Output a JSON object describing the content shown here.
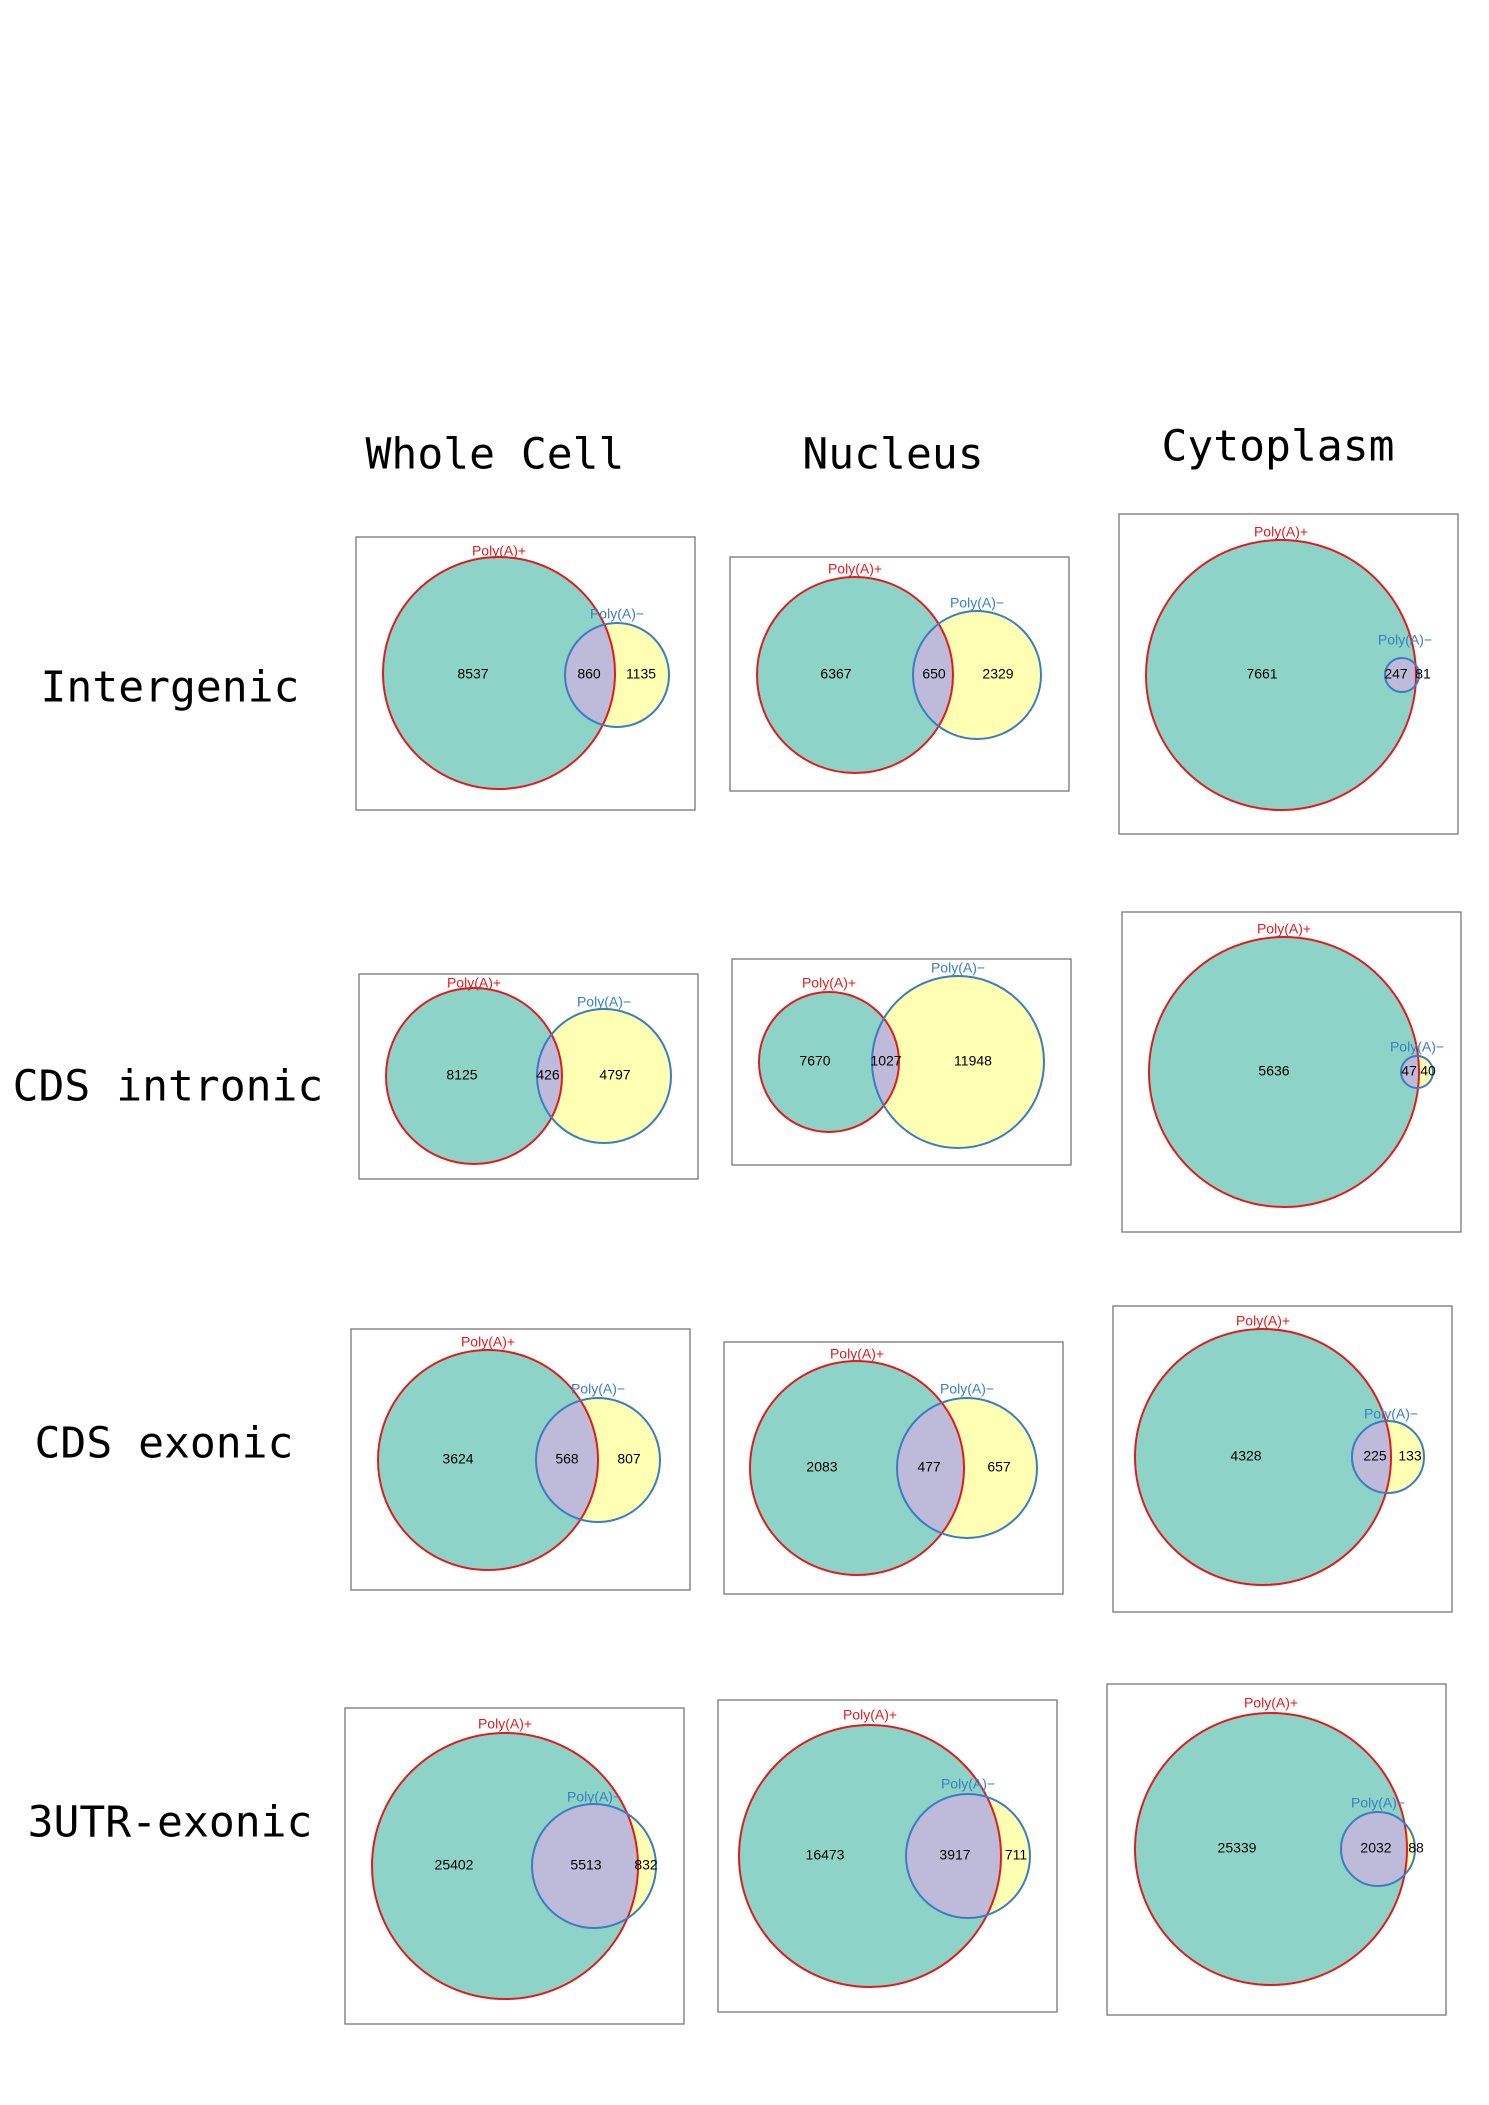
{
  "columns": [
    "Whole Cell",
    "Nucleus",
    "Cytoplasm"
  ],
  "rows": [
    "Intergenic",
    "CDS intronic",
    "CDS exonic",
    "3UTR-exonic"
  ],
  "set_labels": {
    "a": "Poly(A)+",
    "b": "Poly(A)−"
  },
  "colors": {
    "a_fill": "#8dd3c7",
    "b_fill": "#ffffb3",
    "overlap_fill": "#bebada",
    "a_stroke": "#e31a1c",
    "b_stroke": "#3a7dc2",
    "label_a": "#e31a1c",
    "label_b": "#3a7dc2",
    "frame": "#777777"
  },
  "chart_data": [
    {
      "row": "Intergenic",
      "column": "Whole Cell",
      "a_only": "8537",
      "both": "860",
      "b_only": "1135"
    },
    {
      "row": "Intergenic",
      "column": "Nucleus",
      "a_only": "6367",
      "both": "650",
      "b_only": "2329"
    },
    {
      "row": "Intergenic",
      "column": "Cytoplasm",
      "a_only": "7661",
      "both": "247",
      "b_only": "81"
    },
    {
      "row": "CDS intronic",
      "column": "Whole Cell",
      "a_only": "8125",
      "both": "426",
      "b_only": "4797"
    },
    {
      "row": "CDS intronic",
      "column": "Nucleus",
      "a_only": "7670",
      "both": "1027",
      "b_only": "11948"
    },
    {
      "row": "CDS intronic",
      "column": "Cytoplasm",
      "a_only": "5636",
      "both": "47",
      "b_only": "40"
    },
    {
      "row": "CDS exonic",
      "column": "Whole Cell",
      "a_only": "3624",
      "both": "568",
      "b_only": "807"
    },
    {
      "row": "CDS exonic",
      "column": "Nucleus",
      "a_only": "2083",
      "both": "477",
      "b_only": "657"
    },
    {
      "row": "CDS exonic",
      "column": "Cytoplasm",
      "a_only": "4328",
      "both": "225",
      "b_only": "133"
    },
    {
      "row": "3UTR-exonic",
      "column": "Whole Cell",
      "a_only": "25402",
      "both": "5513",
      "b_only": "832"
    },
    {
      "row": "3UTR-exonic",
      "column": "Nucleus",
      "a_only": "16473",
      "both": "3917",
      "b_only": "711"
    },
    {
      "row": "3UTR-exonic",
      "column": "Cytoplasm",
      "a_only": "25339",
      "both": "2032",
      "b_only": "88"
    }
  ]
}
